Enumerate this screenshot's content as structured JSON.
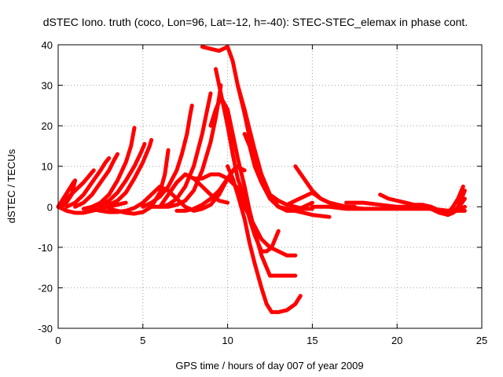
{
  "chart_data": {
    "type": "line",
    "title": "dSTEC Iono. truth (coco, Lon=96, Lat=-12, h=-40): STEC-STEC_elemax in phase cont.",
    "xlabel": "GPS time / hours of day 007 of year 2009",
    "ylabel": "dSTEC  / TECUs",
    "xlim": [
      0,
      25
    ],
    "ylim": [
      -30,
      40
    ],
    "xticks": [
      0,
      5,
      10,
      15,
      20,
      25
    ],
    "yticks": [
      -30,
      -20,
      -10,
      0,
      10,
      20,
      30,
      40
    ],
    "grid": true,
    "legend": "none",
    "marker": "plus",
    "color": "#ff0000",
    "series": [
      {
        "x": [
          0.0,
          0.3,
          0.6,
          0.9,
          1.0,
          0.8,
          0.4,
          0.1
        ],
        "y": [
          0,
          2,
          4,
          6,
          6.5,
          3,
          0.5,
          0
        ]
      },
      {
        "x": [
          0.0,
          0.5,
          1.0,
          1.5,
          1.8,
          2.0,
          2.1
        ],
        "y": [
          0,
          2,
          4,
          6,
          7.5,
          8.5,
          9
        ]
      },
      {
        "x": [
          0.5,
          1.0,
          1.5,
          2.0,
          2.5,
          2.8,
          3.0
        ],
        "y": [
          0,
          1,
          3,
          6,
          9,
          11,
          12
        ]
      },
      {
        "x": [
          1.0,
          1.5,
          2.0,
          2.5,
          3.0,
          3.3,
          3.5
        ],
        "y": [
          0,
          1,
          3,
          6,
          9,
          11.5,
          13
        ]
      },
      {
        "x": [
          1.5,
          2.0,
          2.5,
          3.0,
          3.5,
          4.0,
          4.3,
          4.5
        ],
        "y": [
          -0.5,
          0,
          1,
          3,
          6.5,
          11,
          15,
          19.5
        ]
      },
      {
        "x": [
          2.0,
          2.5,
          3.0,
          3.5,
          4.0,
          4.5,
          4.9,
          5.1
        ],
        "y": [
          0,
          0.5,
          1.5,
          3.5,
          6.5,
          10,
          13.5,
          15.5
        ]
      },
      {
        "x": [
          2.5,
          3.0,
          3.5,
          4.0,
          4.5,
          5.0,
          5.4,
          5.5
        ],
        "y": [
          0,
          0.5,
          1.5,
          3.5,
          7,
          11,
          15,
          16.5
        ]
      },
      {
        "x": [
          0.0,
          0.5,
          1.0,
          1.5,
          2.0,
          2.5,
          3.0,
          3.5,
          4.0
        ],
        "y": [
          0,
          -1,
          -1.5,
          -1.5,
          -1,
          -0.5,
          0,
          0.5,
          1
        ]
      },
      {
        "x": [
          2.0,
          2.5,
          3.0,
          3.5,
          4.0,
          4.5,
          5.0,
          5.5,
          6.0,
          6.5
        ],
        "y": [
          -0.5,
          -1,
          -1.3,
          -1.3,
          -1,
          -0.3,
          1,
          3,
          5,
          4
        ]
      },
      {
        "x": [
          3.0,
          3.5,
          4.0,
          4.5,
          5.0,
          5.5,
          6.0,
          6.3,
          6.5
        ],
        "y": [
          -0.5,
          -1,
          -1.5,
          -1.7,
          -1.3,
          0,
          3.5,
          8,
          14
        ]
      },
      {
        "x": [
          5.0,
          5.5,
          6.0,
          6.5,
          7.0,
          7.3,
          7.6,
          7.8,
          7.9
        ],
        "y": [
          0,
          1,
          2.5,
          5,
          9,
          13,
          18,
          23,
          25
        ]
      },
      {
        "x": [
          5.5,
          6.0,
          6.5,
          7.0,
          7.5,
          8.0,
          8.5,
          8.8,
          9.0
        ],
        "y": [
          0,
          0,
          0.5,
          2,
          5,
          10,
          18,
          24,
          28
        ]
      },
      {
        "x": [
          6.0,
          6.5,
          7.0,
          7.5,
          8.0,
          8.5,
          9.0,
          9.3,
          9.5,
          9.6
        ],
        "y": [
          0,
          0,
          0.5,
          1.5,
          4,
          9,
          16,
          22,
          27,
          30
        ]
      },
      {
        "x": [
          6.0,
          6.5,
          7.0,
          7.5,
          8.0,
          8.5,
          9.0,
          9.5,
          10.0
        ],
        "y": [
          0,
          3,
          6,
          8,
          7,
          5,
          3,
          1.5,
          1
        ]
      },
      {
        "x": [
          6.5,
          7.0,
          7.5,
          8.0,
          8.5,
          9.0,
          9.5,
          10.0
        ],
        "y": [
          4,
          2,
          0,
          -1,
          -0.5,
          0.5,
          3,
          7
        ]
      },
      {
        "x": [
          7.0,
          7.5,
          8.0,
          8.5,
          9.0,
          9.5,
          10.0,
          10.5,
          11.0
        ],
        "y": [
          -1,
          -1,
          -0.5,
          0.5,
          2,
          4,
          7,
          10,
          9
        ]
      },
      {
        "x": [
          7.5,
          8.0,
          8.5,
          9.0,
          9.5,
          10.0,
          10.5,
          10.8,
          11.0,
          11.5,
          12.0,
          12.5,
          13.0,
          13.5,
          14.0
        ],
        "y": [
          8,
          7,
          7,
          8,
          8,
          7,
          5,
          3,
          0,
          -4,
          -8,
          -10,
          -11,
          -12,
          -12
        ]
      },
      {
        "x": [
          9.0,
          9.3,
          9.6,
          10.0,
          10.3,
          10.6,
          11.0,
          11.3,
          11.6,
          12.0,
          12.5,
          13.0,
          13.5,
          14.0
        ],
        "y": [
          20,
          24,
          27,
          24,
          18,
          12,
          5,
          -1,
          -6,
          -12,
          -17,
          -17,
          -17,
          -17
        ]
      },
      {
        "x": [
          10.0,
          10.3,
          10.6,
          11.0,
          11.3,
          11.6,
          12.0,
          12.3,
          12.6,
          13.0,
          13.5,
          14.0,
          14.3
        ],
        "y": [
          10,
          7,
          3,
          -3,
          -9,
          -14,
          -20,
          -24,
          -26,
          -26,
          -25.5,
          -24,
          -22
        ]
      },
      {
        "x": [
          9.3,
          9.6,
          10.0,
          10.3,
          10.6,
          11.0,
          11.3,
          11.6,
          12.0,
          12.3,
          12.6,
          13.0
        ],
        "y": [
          34,
          28,
          20,
          13,
          7,
          2,
          -3,
          -7,
          -11,
          -11,
          -10,
          -6
        ]
      },
      {
        "x": [
          8.5,
          9.0,
          9.5,
          10.0,
          10.3,
          10.6,
          11.0,
          11.3,
          11.6,
          12.0,
          12.5,
          13.0,
          14.0,
          15.0,
          16.0
        ],
        "y": [
          39.5,
          39,
          38.5,
          39.5,
          36,
          30,
          23,
          17,
          11,
          6,
          2,
          0,
          -1,
          -2,
          -2.5
        ]
      },
      {
        "x": [
          10.6,
          11.0,
          11.3,
          11.6,
          12.0,
          12.5,
          13.0,
          13.5,
          14.0,
          14.5,
          15.0
        ],
        "y": [
          30,
          24,
          19,
          14,
          8,
          3,
          0,
          -1,
          -1,
          0,
          1
        ]
      },
      {
        "x": [
          11.0,
          11.3,
          11.6,
          12.0,
          12.5,
          13.0,
          13.5,
          14.0,
          14.5,
          15.0
        ],
        "y": [
          18,
          15,
          10,
          6,
          3,
          1.5,
          0.5,
          0,
          -0.5,
          -0.5
        ]
      },
      {
        "x": [
          14.0,
          14.5,
          15.0,
          15.5,
          16.0,
          16.5,
          17.0,
          17.5
        ],
        "y": [
          10,
          7,
          4,
          2,
          1,
          0.5,
          0,
          0
        ]
      },
      {
        "x": [
          13.5,
          14.0,
          14.5,
          15.0,
          15.5,
          16.0,
          17.0,
          18.0
        ],
        "y": [
          0.5,
          1.5,
          2.5,
          3.5,
          2,
          1,
          0,
          -0.5
        ]
      },
      {
        "x": [
          15.0,
          16.0,
          17.0,
          18.0,
          19.0,
          20.0,
          21.0,
          22.0,
          23.0,
          24.0
        ],
        "y": [
          0,
          0,
          -0.5,
          -0.5,
          -0.5,
          -0.5,
          -0.5,
          -0.5,
          -1,
          -1
        ]
      },
      {
        "x": [
          17.0,
          18.0,
          19.0,
          20.0,
          21.0,
          22.0,
          23.0,
          23.5,
          24.0
        ],
        "y": [
          1,
          1,
          0.5,
          0,
          0,
          -0.5,
          -1,
          -1,
          0
        ]
      },
      {
        "x": [
          19.0,
          19.5,
          20.0,
          20.5,
          21.0,
          21.5,
          22.0,
          22.5,
          23.0
        ],
        "y": [
          3,
          2,
          1.5,
          1,
          0.5,
          0.5,
          0,
          -1,
          -2
        ]
      },
      {
        "x": [
          21.5,
          22.0,
          22.5,
          23.0,
          23.3,
          23.6,
          24.0
        ],
        "y": [
          0,
          -0.5,
          -1.5,
          -2,
          -1.5,
          0,
          4
        ]
      },
      {
        "x": [
          22.0,
          22.5,
          23.0,
          23.5,
          24.0
        ],
        "y": [
          0,
          -1,
          -2,
          -1,
          2
        ]
      },
      {
        "x": [
          22.5,
          23.0,
          23.3,
          23.6,
          23.9
        ],
        "y": [
          -1,
          -1.5,
          0,
          2,
          5
        ]
      }
    ]
  }
}
